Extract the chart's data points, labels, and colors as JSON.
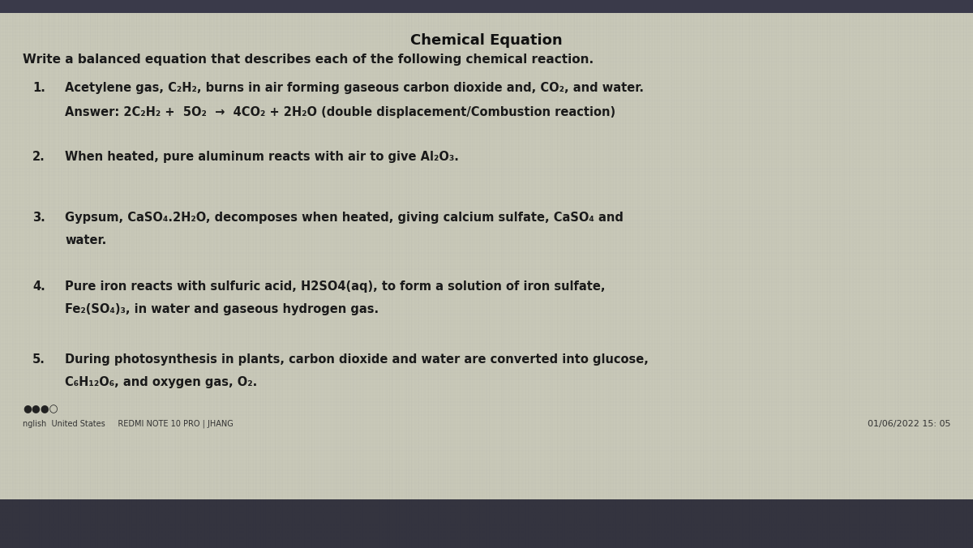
{
  "title": "Chemical Equation",
  "instruction": "Write a balanced equation that describes each of the following chemical reaction.",
  "items": [
    {
      "number": "1.",
      "line1": "Acetylene gas, C₂H₂, burns in air forming gaseous carbon dioxide and, CO₂, and water.",
      "line2_bold": "Answer: 2C₂H₂ +  5O₂  →  4CO₂ + 2H₂O (double displacement/Combustion reaction)"
    },
    {
      "number": "2.",
      "line1": "When heated, pure aluminum reacts with air to give Al₂O₃."
    },
    {
      "number": "3.",
      "line1": "Gypsum, CaSO₄.2H₂O, decomposes when heated, giving calcium sulfate, CaSO₄ and",
      "line2": "water."
    },
    {
      "number": "4.",
      "line1": "Pure iron reacts with sulfuric acid, H2SO4(aq), to form a solution of iron sulfate,",
      "line2": "Fe₂(SO₄)₃, in water and gaseous hydrogen gas."
    },
    {
      "number": "5.",
      "line1": "During photosynthesis in plants, carbon dioxide and water are converted into glucose,",
      "line2": "C₆H₁₂O₆, and oxygen gas, O₂."
    }
  ],
  "bg_color_light": "#c8c8b8",
  "bg_color_mid": "#b8b8a8",
  "text_color": "#1a1a1a",
  "title_color": "#111111",
  "font_size_title": 13,
  "font_size_instruction": 11,
  "font_size_item": 10.5,
  "font_size_answer": 10.5,
  "bottom_left_text1": "●●●○",
  "bottom_left_text2": "nglish  United States     REDMI NOTE 10 PRO | JHANG",
  "bottom_right_text": "01/06/2022 15: 05"
}
